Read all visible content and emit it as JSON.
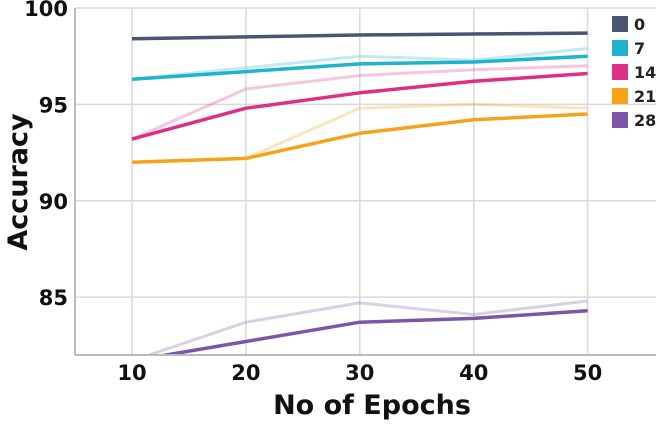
{
  "chart_data": {
    "type": "line",
    "xlabel": "No of Epochs",
    "ylabel": "Accuracy",
    "x": [
      10,
      20,
      30,
      40,
      50
    ],
    "xlim": [
      5,
      56
    ],
    "ylim": [
      82,
      100
    ],
    "xticks": [
      "10",
      "20",
      "30",
      "40",
      "50"
    ],
    "yticks": [
      "85",
      "90",
      "95",
      "100"
    ],
    "grid": true,
    "legend_position": "top-right",
    "series": [
      {
        "name": "0",
        "color": "#4a5572",
        "values": [
          98.4,
          98.5,
          98.6,
          98.65,
          98.7
        ],
        "faint_values": [
          98.4,
          98.5,
          98.6,
          98.65,
          98.7
        ]
      },
      {
        "name": "7",
        "color": "#1fb3cc",
        "values": [
          96.3,
          96.7,
          97.1,
          97.2,
          97.5
        ],
        "faint_values": [
          96.3,
          96.9,
          97.5,
          97.3,
          97.9
        ]
      },
      {
        "name": "14",
        "color": "#de2f87",
        "values": [
          93.2,
          94.8,
          95.6,
          96.2,
          96.6
        ],
        "faint_values": [
          93.2,
          95.8,
          96.5,
          96.8,
          97.0
        ]
      },
      {
        "name": "21",
        "color": "#f6a317",
        "values": [
          92.0,
          92.2,
          93.5,
          94.2,
          94.5
        ],
        "faint_values": [
          92.0,
          92.2,
          94.8,
          95.0,
          94.8
        ]
      },
      {
        "name": "28",
        "color": "#7b55a6",
        "values": [
          81.7,
          82.7,
          83.7,
          83.9,
          84.3
        ],
        "faint_values": [
          81.7,
          83.7,
          84.7,
          84.1,
          84.8
        ]
      }
    ]
  }
}
